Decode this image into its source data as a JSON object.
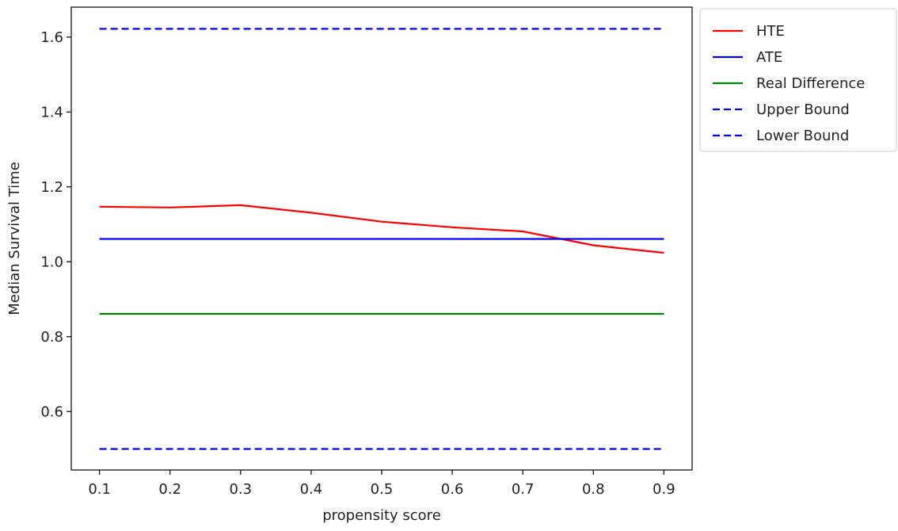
{
  "chart_data": {
    "type": "line",
    "title": "",
    "xlabel": "propensity score",
    "ylabel": "Median Survival Time",
    "x": [
      0.1,
      0.2,
      0.3,
      0.4,
      0.5,
      0.6,
      0.7,
      0.8,
      0.9
    ],
    "xticks": [
      "0.1",
      "0.2",
      "0.3",
      "0.4",
      "0.5",
      "0.6",
      "0.7",
      "0.8",
      "0.9"
    ],
    "yticks": [
      "0.6",
      "0.8",
      "1.0",
      "1.2",
      "1.4",
      "1.6"
    ],
    "yticks_values": [
      0.6,
      0.8,
      1.0,
      1.2,
      1.4,
      1.6
    ],
    "xlim": [
      0.06,
      0.94
    ],
    "ylim": [
      0.444,
      1.68
    ],
    "grid": false,
    "legend_position": "outside upper right",
    "series": [
      {
        "name": "HTE",
        "color": "#ff0000",
        "style": "solid",
        "values": [
          1.147,
          1.145,
          1.151,
          1.131,
          1.107,
          1.092,
          1.081,
          1.044,
          1.024
        ]
      },
      {
        "name": "ATE",
        "color": "#0000ff",
        "style": "solid",
        "values": [
          1.061,
          1.061,
          1.061,
          1.061,
          1.061,
          1.061,
          1.061,
          1.061,
          1.061
        ]
      },
      {
        "name": "Real Difference",
        "color": "#008000",
        "style": "solid",
        "values": [
          0.861,
          0.861,
          0.861,
          0.861,
          0.861,
          0.861,
          0.861,
          0.861,
          0.861
        ]
      },
      {
        "name": "Upper Bound",
        "color": "#0000ff",
        "style": "dashed",
        "values": [
          1.622,
          1.622,
          1.622,
          1.622,
          1.622,
          1.622,
          1.622,
          1.622,
          1.622
        ]
      },
      {
        "name": "Lower Bound",
        "color": "#0000ff",
        "style": "dashed",
        "values": [
          0.5,
          0.5,
          0.5,
          0.5,
          0.5,
          0.5,
          0.5,
          0.5,
          0.5
        ]
      }
    ]
  }
}
